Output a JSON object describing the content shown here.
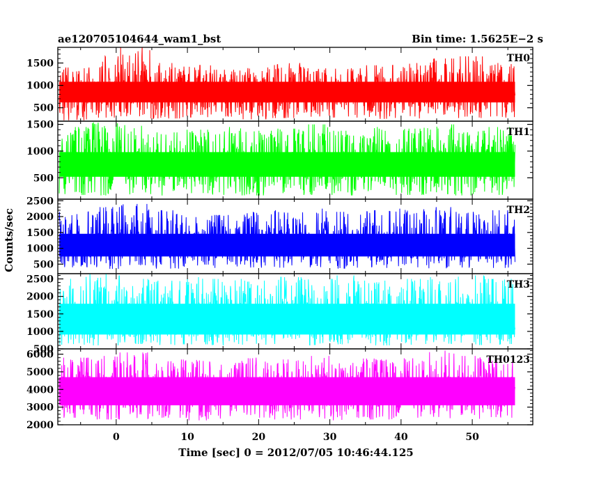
{
  "chart_data": {
    "type": "line",
    "title": "ae120705104644_wam1_bst",
    "subtitle": "Bin time: 1.5625E−2 s",
    "xlabel": "Time [sec] 0 = 2012/07/05 10:46:44.125",
    "ylabel": "Counts/sec",
    "xlim": [
      -8.2,
      58.5
    ],
    "data_range": [
      -8,
      56
    ],
    "xticks": [
      0,
      10,
      20,
      30,
      40,
      50
    ],
    "x_tick_labels": [
      "0",
      "10",
      "20",
      "30",
      "40",
      "50"
    ],
    "grid": false,
    "legend": "none",
    "series": [
      {
        "name": "TH0",
        "color": "#ff0000",
        "ylim": [
          200,
          1850
        ],
        "yticks": [
          500,
          1000,
          1500
        ],
        "y_tick_labels": [
          "500",
          "1000",
          "1500"
        ],
        "mean": 850,
        "amplitude": 420,
        "min": 200,
        "max": 1850,
        "envelope_low": [
          220,
          280,
          310,
          260,
          290,
          300,
          240,
          270,
          300,
          280,
          250,
          260,
          290,
          270,
          280
        ],
        "envelope_high": [
          1400,
          1650,
          1850,
          1500,
          1450,
          1350,
          1400,
          1500,
          1420,
          1380,
          1450,
          1500,
          1600,
          1650,
          1500
        ]
      },
      {
        "name": "TH1",
        "color": "#00ff00",
        "ylim": [
          100,
          1560
        ],
        "yticks": [
          500,
          1000,
          1500
        ],
        "y_tick_labels": [
          "500",
          "1000",
          "1500"
        ],
        "mean": 750,
        "amplitude": 420,
        "min": 150,
        "max": 1560,
        "envelope_low": [
          180,
          170,
          190,
          160,
          200,
          180,
          170,
          190,
          180,
          170,
          190,
          180,
          200,
          170,
          180
        ],
        "envelope_high": [
          1450,
          1560,
          1500,
          1350,
          1400,
          1450,
          1380,
          1420,
          1500,
          1380,
          1450,
          1420,
          1500,
          1380,
          1450
        ]
      },
      {
        "name": "TH2",
        "color": "#0000ff",
        "ylim": [
          200,
          2550
        ],
        "yticks": [
          500,
          1000,
          1500,
          2000,
          2500
        ],
        "y_tick_labels": [
          "500",
          "1000",
          "1500",
          "2000",
          "2500"
        ],
        "mean": 1100,
        "amplitude": 650,
        "min": 200,
        "max": 2450,
        "envelope_low": [
          400,
          350,
          380,
          360,
          420,
          380,
          370,
          390,
          400,
          360,
          380,
          400,
          370,
          390,
          380
        ],
        "envelope_high": [
          2150,
          2300,
          2400,
          2200,
          2100,
          2050,
          2150,
          2200,
          2250,
          2150,
          2200,
          2250,
          2300,
          2150,
          2200
        ]
      },
      {
        "name": "TH3",
        "color": "#00ffff",
        "ylim": [
          500,
          2650
        ],
        "yticks": [
          500,
          1000,
          1500,
          2000,
          2500
        ],
        "y_tick_labels": [
          "500",
          "1000",
          "1500",
          "2000",
          "2500"
        ],
        "mean": 1350,
        "amplitude": 800,
        "min": 550,
        "max": 2650,
        "envelope_low": [
          620,
          600,
          640,
          610,
          630,
          600,
          620,
          640,
          610,
          630,
          600,
          620,
          640,
          610,
          620
        ],
        "envelope_high": [
          2600,
          2650,
          2500,
          2450,
          2550,
          2500,
          2450,
          2550,
          2500,
          2600,
          2450,
          2500,
          2550,
          2600,
          2500
        ]
      },
      {
        "name": "TH0123",
        "color": "#ff00ff",
        "ylim": [
          2000,
          6300
        ],
        "yticks": [
          2000,
          3000,
          4000,
          5000,
          6000
        ],
        "y_tick_labels": [
          "2000",
          "3000",
          "4000",
          "5000",
          "6000"
        ],
        "mean": 3900,
        "amplitude": 1450,
        "min": 2000,
        "max": 6250,
        "envelope_low": [
          2400,
          2300,
          2350,
          2400,
          2250,
          2350,
          2400,
          2300,
          2350,
          2250,
          2300,
          2400,
          2350,
          2300,
          2400
        ],
        "envelope_high": [
          5800,
          5900,
          6100,
          5600,
          5700,
          5500,
          5800,
          5700,
          5900,
          5600,
          5750,
          5800,
          6200,
          5900,
          5800
        ]
      }
    ]
  }
}
